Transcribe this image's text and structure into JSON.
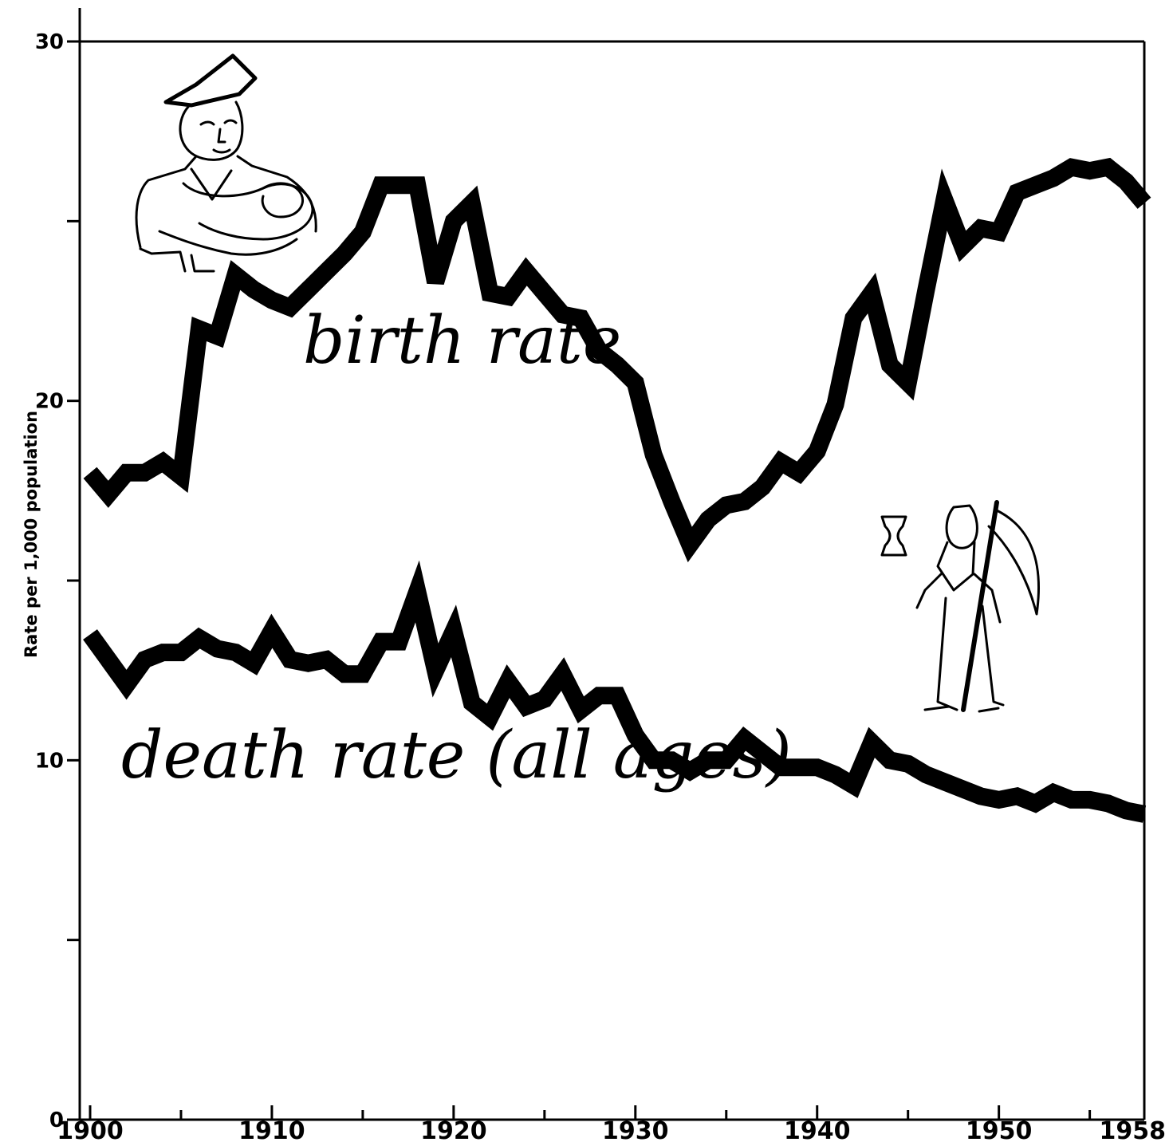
{
  "chart_data": {
    "type": "line",
    "title": "",
    "xlabel": "",
    "ylabel": "Rate per 1,000 population",
    "xlim": [
      1900,
      1958
    ],
    "ylim": [
      0,
      30
    ],
    "x_ticks": [
      1900,
      1910,
      1920,
      1930,
      1940,
      1950,
      1958
    ],
    "y_ticks": [
      0,
      10,
      20,
      30
    ],
    "grid": false,
    "legend": "none (series labeled directly on chart)",
    "line_color": "#000000",
    "x": [
      1900,
      1901,
      1902,
      1903,
      1904,
      1905,
      1906,
      1907,
      1908,
      1909,
      1910,
      1911,
      1912,
      1913,
      1914,
      1915,
      1916,
      1917,
      1918,
      1919,
      1920,
      1921,
      1922,
      1923,
      1924,
      1925,
      1926,
      1927,
      1928,
      1929,
      1930,
      1931,
      1932,
      1933,
      1934,
      1935,
      1936,
      1937,
      1938,
      1939,
      1940,
      1941,
      1942,
      1943,
      1944,
      1945,
      1946,
      1947,
      1948,
      1949,
      1950,
      1951,
      1952,
      1953,
      1954,
      1955,
      1956,
      1957,
      1958
    ],
    "series": [
      {
        "name": "birth rate",
        "values": [
          18.0,
          17.4,
          18.0,
          18.0,
          18.3,
          17.9,
          22.0,
          21.8,
          23.5,
          23.1,
          22.8,
          22.6,
          23.1,
          23.6,
          24.1,
          24.7,
          26.0,
          26.0,
          26.0,
          23.3,
          25.0,
          25.5,
          23.0,
          22.9,
          23.6,
          23.0,
          22.4,
          22.3,
          21.4,
          21.0,
          20.5,
          18.5,
          17.2,
          16.0,
          16.7,
          17.1,
          17.2,
          17.6,
          18.3,
          18.0,
          18.6,
          19.9,
          22.3,
          23.0,
          21.0,
          20.5,
          23.1,
          25.6,
          24.3,
          24.8,
          24.7,
          25.8,
          26.0,
          26.2,
          26.5,
          26.4,
          26.5,
          26.1,
          25.5
        ]
      },
      {
        "name": "death rate (all ages)",
        "values": [
          13.5,
          12.8,
          12.1,
          12.8,
          13.0,
          13.0,
          13.4,
          13.1,
          13.0,
          12.7,
          13.6,
          12.8,
          12.7,
          12.8,
          12.4,
          12.4,
          13.3,
          13.3,
          14.7,
          12.5,
          13.6,
          11.6,
          11.2,
          12.2,
          11.5,
          11.7,
          12.4,
          11.4,
          11.8,
          11.8,
          10.7,
          10.0,
          10.0,
          9.7,
          10.0,
          10.0,
          10.6,
          10.2,
          9.8,
          9.8,
          9.8,
          9.6,
          9.3,
          10.5,
          10.0,
          9.9,
          9.6,
          9.4,
          9.2,
          9.0,
          8.9,
          9.0,
          8.8,
          9.1,
          8.9,
          8.9,
          8.8,
          8.6,
          8.5
        ]
      }
    ],
    "annotations": [
      "birth rate",
      "death rate (all ages)"
    ]
  }
}
